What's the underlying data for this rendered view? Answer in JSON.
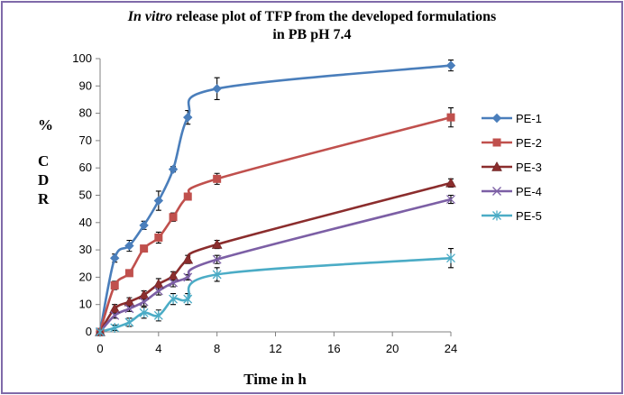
{
  "title": {
    "line1_italic": "In vitro",
    "line1_rest": " release plot of TFP from the developed formulations",
    "line2": "in PB pH 7.4"
  },
  "ylabel_lines": [
    "%",
    "C",
    "D",
    "R"
  ],
  "chart_data": {
    "type": "line",
    "title": "In vitro release plot of TFP from the developed formulations in PB pH 7.4",
    "xlabel": "Time in h",
    "ylabel": "% CDR",
    "xlim": [
      0,
      24
    ],
    "ylim": [
      0,
      100
    ],
    "xticks": [
      0,
      4,
      8,
      12,
      16,
      20,
      24
    ],
    "yticks": [
      0,
      10,
      20,
      30,
      40,
      50,
      60,
      70,
      80,
      90,
      100
    ],
    "series": [
      {
        "name": "PE-1",
        "color": "#4a7ebb",
        "marker": "diamond",
        "x": [
          0,
          1,
          2,
          3,
          4,
          5,
          6,
          8,
          24
        ],
        "y": [
          0,
          27,
          31.5,
          39,
          48,
          59.5,
          78.5,
          89,
          97.5
        ],
        "err": [
          0,
          1.5,
          2,
          1.5,
          3.5,
          1,
          2.5,
          4,
          2
        ]
      },
      {
        "name": "PE-2",
        "color": "#c0504d",
        "marker": "square",
        "x": [
          0,
          1,
          2,
          3,
          4,
          5,
          6,
          8,
          24
        ],
        "y": [
          0,
          17,
          21.5,
          30.5,
          34.5,
          42,
          49.5,
          56,
          78.5
        ],
        "err": [
          0,
          1.5,
          1,
          1,
          2,
          1.5,
          1,
          2,
          3.5
        ]
      },
      {
        "name": "PE-3",
        "color": "#8b2d2d",
        "marker": "triangle",
        "x": [
          0,
          1,
          2,
          3,
          4,
          5,
          6,
          8,
          24
        ],
        "y": [
          0,
          8.5,
          11,
          13.5,
          17.5,
          20.5,
          26.5,
          32,
          54.5
        ],
        "err": [
          0,
          1.5,
          1.5,
          1.5,
          2,
          1.5,
          1.5,
          1.5,
          1.5
        ]
      },
      {
        "name": "PE-4",
        "color": "#7c5fa5",
        "marker": "x",
        "x": [
          0,
          1,
          2,
          3,
          4,
          5,
          6,
          8,
          24
        ],
        "y": [
          0,
          6,
          8.5,
          11,
          15,
          18,
          20,
          26.5,
          48.5
        ],
        "err": [
          0,
          1,
          1,
          1.5,
          1.5,
          1.5,
          1,
          1.5,
          1.5
        ]
      },
      {
        "name": "PE-5",
        "color": "#4bacc6",
        "marker": "asterisk",
        "x": [
          0,
          1,
          2,
          3,
          4,
          5,
          6,
          8,
          24
        ],
        "y": [
          0,
          1.5,
          3.5,
          7,
          6,
          12,
          12,
          21,
          27
        ],
        "err": [
          0,
          1,
          1.5,
          2,
          2,
          2,
          2,
          2.5,
          3.5
        ]
      }
    ],
    "legend_position": "right"
  },
  "colors": {
    "frame": "#7f6aa9",
    "axis": "#808080"
  }
}
